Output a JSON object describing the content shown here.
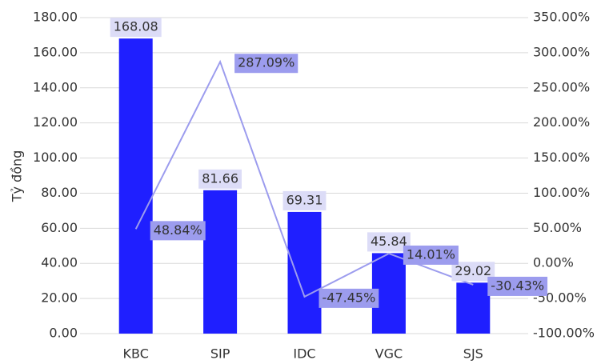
{
  "chart_data": {
    "type": "bar",
    "y_label": "Tỷ đồng",
    "categories": [
      "KBC",
      "SIP",
      "IDC",
      "VGC",
      "SJS"
    ],
    "series": [
      {
        "type": "bar",
        "color": "#1f1fff",
        "label_box": "#dcdcf7",
        "values": [
          168.08,
          81.66,
          69.31,
          45.84,
          29.02
        ]
      },
      {
        "type": "line",
        "axis": "y2",
        "color": "#9c9cee",
        "label_box": "#9c9cee",
        "values": [
          48.84,
          287.09,
          -47.45,
          14.01,
          -30.43
        ],
        "value_labels": [
          "48.84%",
          "287.09%",
          "-47.45%",
          "14.01%",
          "-30.43%"
        ]
      }
    ],
    "ylim": [
      0,
      180
    ],
    "yticks": [
      {
        "value": 0,
        "label": "0.00"
      },
      {
        "value": 20,
        "label": "20.00"
      },
      {
        "value": 40,
        "label": "40.00"
      },
      {
        "value": 60,
        "label": "60.00"
      },
      {
        "value": 80,
        "label": "80.00"
      },
      {
        "value": 100,
        "label": "100.00"
      },
      {
        "value": 120,
        "label": "120.00"
      },
      {
        "value": 140,
        "label": "140.00"
      },
      {
        "value": 160,
        "label": "160.00"
      },
      {
        "value": 180,
        "label": "180.00"
      }
    ],
    "y2lim": [
      -100,
      350
    ],
    "y2ticks": [
      {
        "value": -100,
        "label": "-100.00%"
      },
      {
        "value": -50,
        "label": "-50.00%"
      },
      {
        "value": 0,
        "label": "0.00%"
      },
      {
        "value": 50,
        "label": "50.00%"
      },
      {
        "value": 100,
        "label": "100.00%"
      },
      {
        "value": 150,
        "label": "150.00%"
      },
      {
        "value": 200,
        "label": "200.00%"
      },
      {
        "value": 250,
        "label": "250.00%"
      },
      {
        "value": 300,
        "label": "300.00%"
      },
      {
        "value": 350,
        "label": "350.00%"
      }
    ],
    "grid": true
  }
}
